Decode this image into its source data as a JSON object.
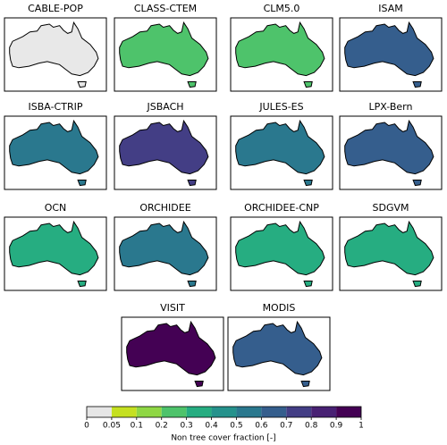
{
  "panels": [
    {
      "title": "CABLE-POP",
      "color": "#e8e8e8"
    },
    {
      "title": "CLASS-CTEM",
      "color": "#4ec36b"
    },
    {
      "title": "CLM5.0",
      "color": "#4ec36b"
    },
    {
      "title": "ISAM",
      "color": "#355e8d"
    },
    {
      "title": "ISBA-CTRIP",
      "color": "#2a788e"
    },
    {
      "title": "JSBACH",
      "color": "#433e85"
    },
    {
      "title": "JULES-ES",
      "color": "#2a788e"
    },
    {
      "title": "LPX-Bern",
      "color": "#355e8d"
    },
    {
      "title": "OCN",
      "color": "#26ad81"
    },
    {
      "title": "ORCHIDEE",
      "color": "#2a788e"
    },
    {
      "title": "ORCHIDEE-CNP",
      "color": "#26ad81"
    },
    {
      "title": "SDGVM",
      "color": "#26ad81"
    },
    {
      "title": "VISIT",
      "color": "#440154"
    },
    {
      "title": "MODIS",
      "color": "#355e8d"
    }
  ],
  "colorbar": {
    "label": "Non tree cover fraction [-]",
    "ticks": [
      0,
      0.05,
      0.1,
      0.2,
      0.3,
      0.4,
      0.5,
      0.6,
      0.7,
      0.8,
      0.9,
      1
    ],
    "colors": [
      "#e6e6e6",
      "#c5e021",
      "#8fd744",
      "#4ec36b",
      "#26ad81",
      "#25928c",
      "#2a788e",
      "#355e8d",
      "#433e85",
      "#482173",
      "#440154"
    ]
  }
}
